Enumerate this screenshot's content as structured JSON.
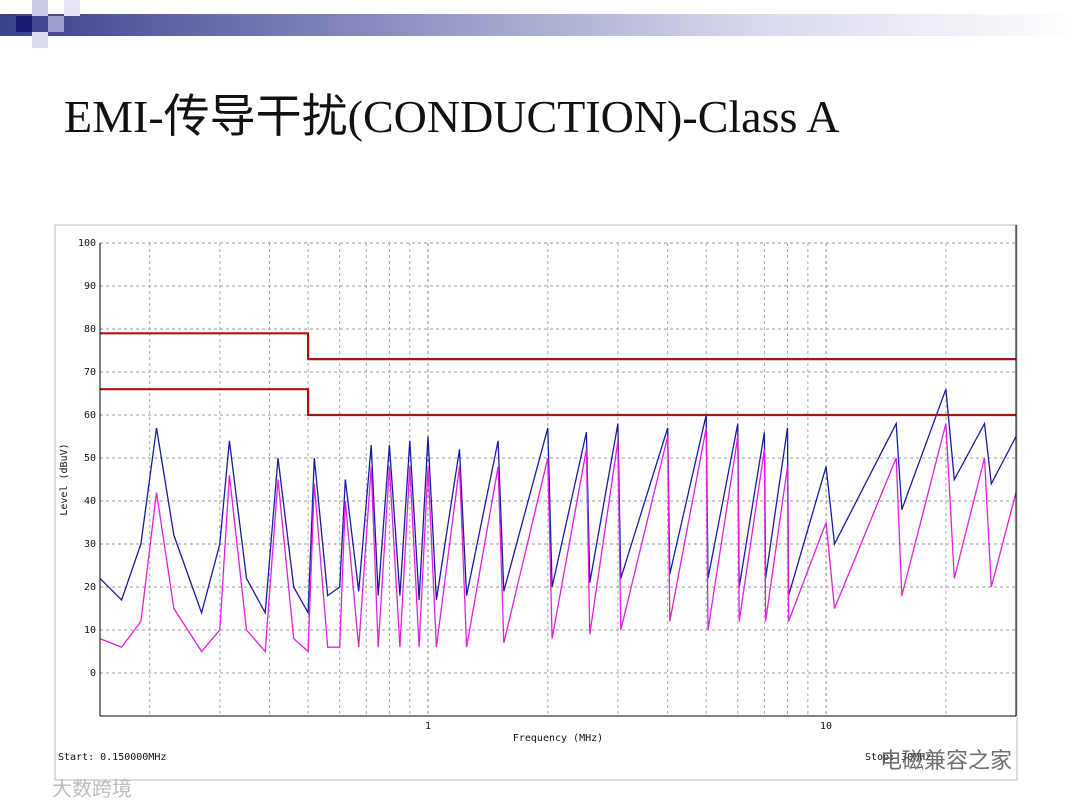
{
  "title": "EMI-传导干扰(CONDUCTION)-Class A",
  "chart_data": {
    "type": "line",
    "x_label": "Frequency (MHz)",
    "y_label": "Level (dBuV)",
    "start_label": "Start: 0.150000MHz",
    "stop_label": "Stop: 30MHz",
    "watermarks": [
      "电磁兼容之家",
      "大数跨境"
    ],
    "log_x": true,
    "grid": true,
    "xlim": [
      0.15,
      30
    ],
    "xticks": [
      1,
      10
    ],
    "x_minor_grid": [
      0.2,
      0.3,
      0.4,
      0.5,
      0.6,
      0.7,
      0.8,
      0.9,
      2,
      3,
      4,
      5,
      6,
      7,
      8,
      9,
      20,
      30
    ],
    "ylim": [
      -10,
      100
    ],
    "yticks": [
      0,
      10,
      20,
      30,
      40,
      50,
      60,
      70,
      80,
      90,
      100
    ],
    "x": [
      0.15,
      0.17,
      0.19,
      0.208,
      0.23,
      0.27,
      0.3,
      0.317,
      0.35,
      0.39,
      0.42,
      0.46,
      0.5,
      0.518,
      0.56,
      0.6,
      0.62,
      0.67,
      0.72,
      0.75,
      0.8,
      0.85,
      0.9,
      0.95,
      1.0,
      1.05,
      1.2,
      1.25,
      1.5,
      1.55,
      2.0,
      2.05,
      2.5,
      2.55,
      3.0,
      3.05,
      4.0,
      4.05,
      5.0,
      5.05,
      6.0,
      6.05,
      7.0,
      7.05,
      8.0,
      8.05,
      10,
      10.5,
      15,
      15.5,
      20,
      21,
      25,
      26,
      30
    ],
    "series": [
      {
        "color": "#1a1aa0",
        "values": [
          22,
          17,
          30,
          57,
          32,
          14,
          30,
          54,
          22,
          14,
          50,
          20,
          14,
          50,
          18,
          20,
          45,
          19,
          53,
          18,
          53,
          18,
          54,
          17,
          55,
          17,
          52,
          18,
          54,
          19,
          57,
          20,
          56,
          21,
          58,
          22,
          57,
          23,
          60,
          22,
          58,
          20,
          56,
          22,
          57,
          18,
          48,
          30,
          58,
          38,
          66,
          45,
          58,
          44,
          55
        ]
      },
      {
        "color": "#e020e0",
        "values": [
          8,
          6,
          12,
          42,
          15,
          5,
          10,
          46,
          10,
          5,
          45,
          8,
          5,
          44,
          6,
          6,
          40,
          6,
          48,
          6,
          48,
          6,
          48,
          6,
          48,
          6,
          48,
          6,
          48,
          7,
          50,
          8,
          52,
          9,
          54,
          10,
          55,
          12,
          57,
          10,
          55,
          12,
          52,
          12,
          48,
          12,
          35,
          15,
          50,
          18,
          58,
          22,
          50,
          20,
          42
        ]
      }
    ],
    "limits": [
      {
        "color": "#b01010",
        "x": [
          0.15,
          0.5,
          0.5,
          30
        ],
        "values": [
          79,
          79,
          73,
          73
        ]
      },
      {
        "color": "#b01010",
        "x": [
          0.15,
          0.5,
          0.5,
          30
        ],
        "values": [
          66,
          66,
          60,
          60
        ]
      }
    ]
  }
}
